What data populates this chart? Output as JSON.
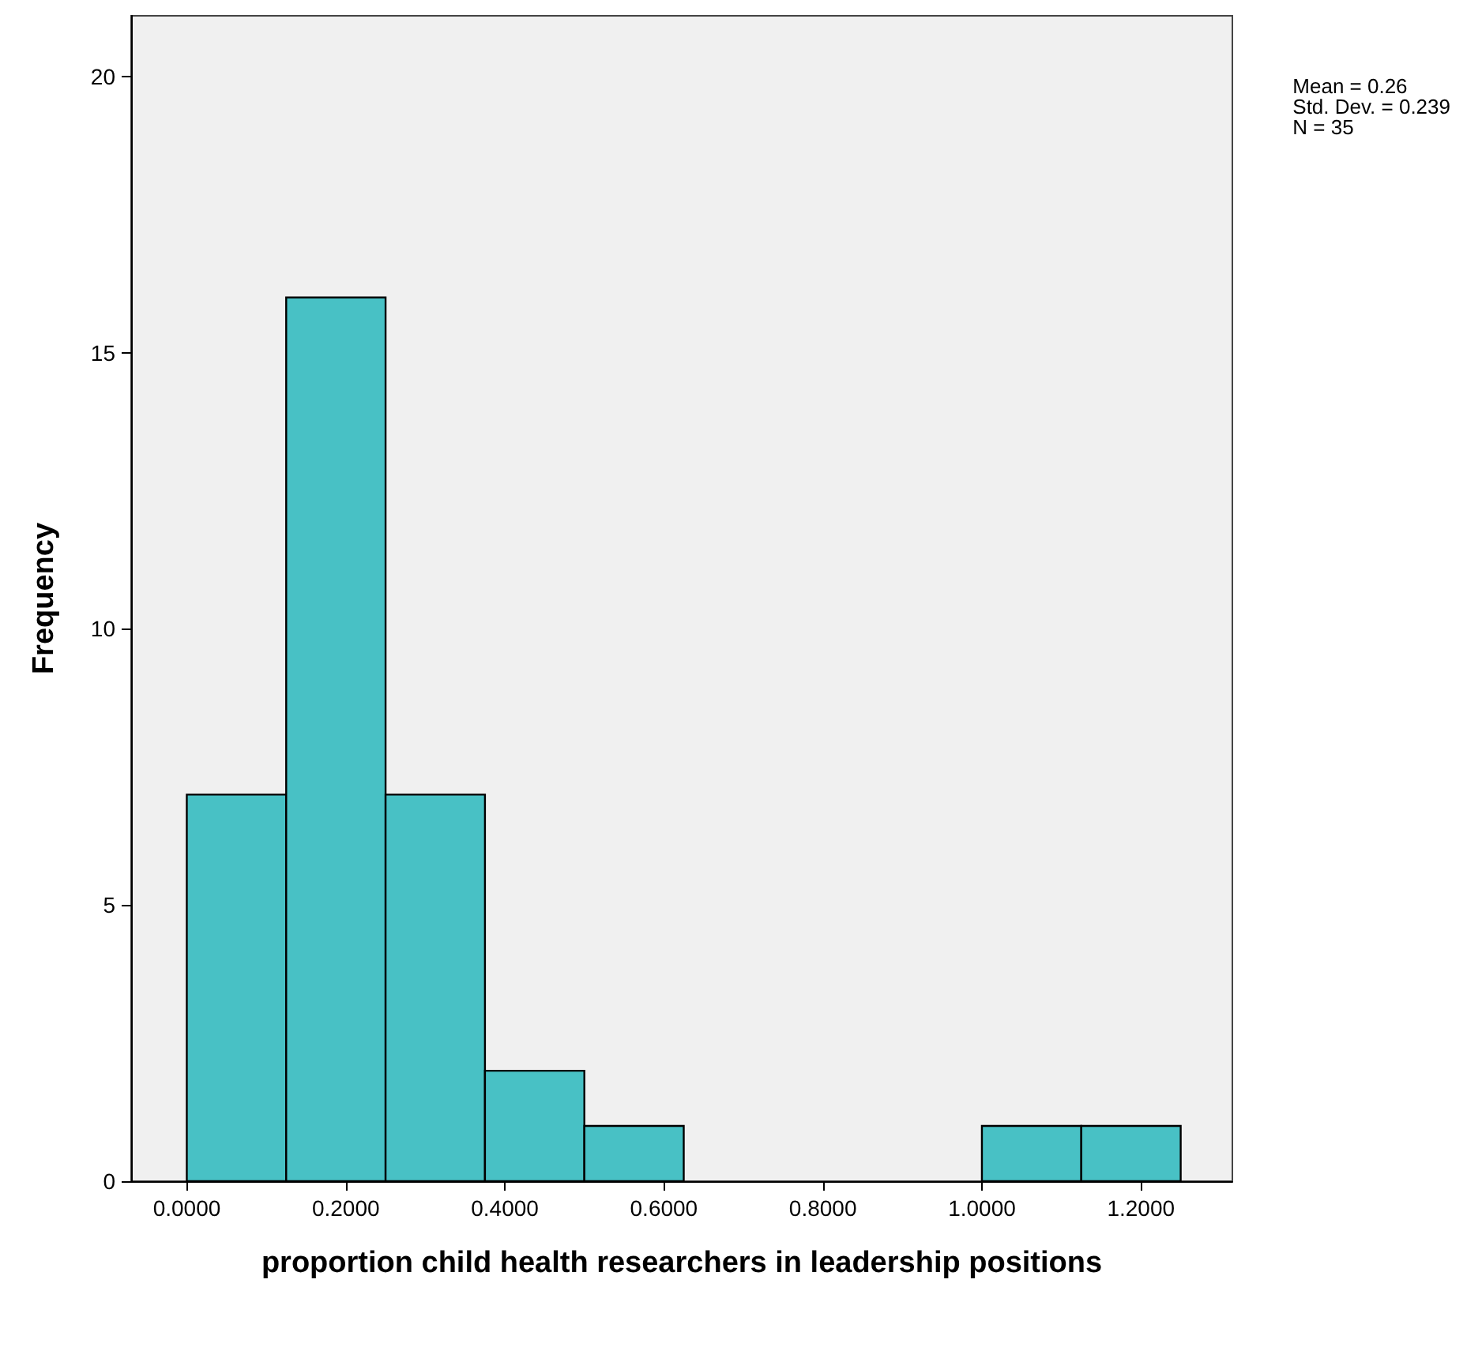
{
  "chart_data": {
    "type": "histogram",
    "xlabel": "proportion child health researchers in leadership positions",
    "ylabel": "Frequency",
    "bins": [
      0,
      0.125,
      0.25,
      0.375,
      0.5,
      0.625,
      0.75,
      0.875,
      1,
      1.125,
      1.25
    ],
    "values": [
      7,
      16,
      7,
      2,
      1,
      0,
      0,
      0,
      1,
      1
    ],
    "color": "#48c1c5",
    "xlim": [
      -0.07,
      1.315
    ],
    "xticks": [
      {
        "value": 0,
        "label": "0.0000"
      },
      {
        "value": 0.2,
        "label": "0.2000"
      },
      {
        "value": 0.4,
        "label": "0.4000"
      },
      {
        "value": 0.6,
        "label": "0.6000"
      },
      {
        "value": 0.8,
        "label": "0.8000"
      },
      {
        "value": 1,
        "label": "1.0000"
      },
      {
        "value": 1.2,
        "label": "1.2000"
      }
    ],
    "ylim": [
      0,
      21.1
    ],
    "yticks": [
      0,
      5,
      10,
      15,
      20
    ],
    "grid": false,
    "annotations": [
      "Mean = 0.26",
      "Std. Dev. = 0.239",
      "N = 35"
    ]
  }
}
